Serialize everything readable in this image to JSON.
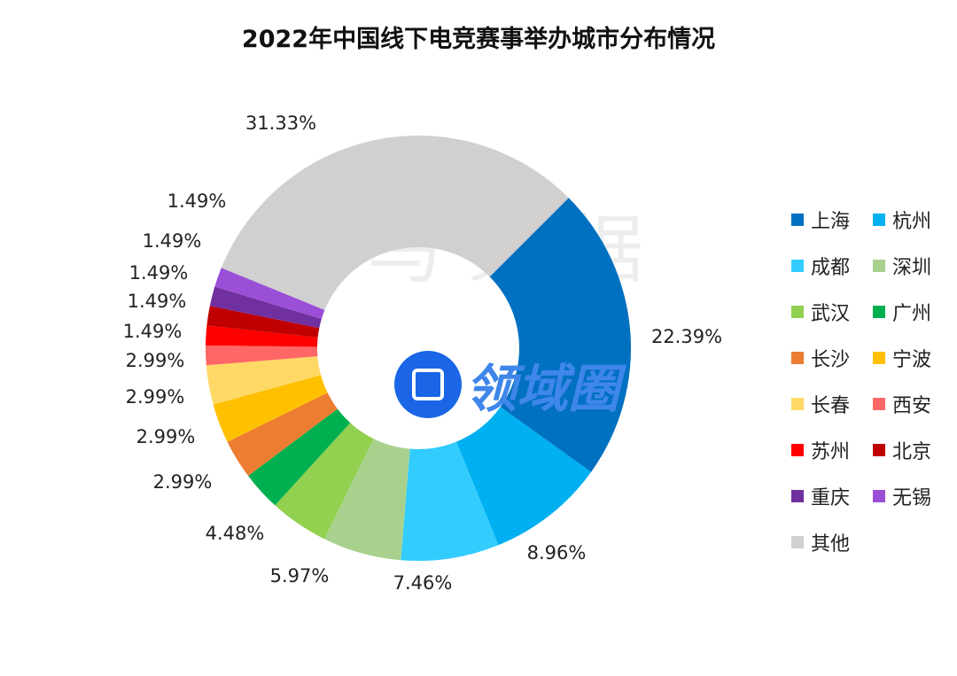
{
  "chart_data": {
    "type": "pie",
    "variant": "donut",
    "title": "2022年中国线下电竞赛事举办城市分布情况",
    "categories": [
      "上海",
      "杭州",
      "成都",
      "深圳",
      "武汉",
      "广州",
      "长沙",
      "宁波",
      "长春",
      "西安",
      "苏州",
      "北京",
      "重庆",
      "无锡",
      "其他"
    ],
    "values": [
      22.39,
      8.96,
      7.46,
      5.97,
      4.48,
      2.99,
      2.99,
      2.99,
      2.99,
      1.49,
      1.49,
      1.49,
      1.49,
      1.49,
      31.33
    ],
    "labels": [
      "22.39%",
      "8.96%",
      "7.46%",
      "5.97%",
      "4.48%",
      "2.99%",
      "2.99%",
      "2.99%",
      "2.99%",
      "1.49%",
      "1.49%",
      "1.49%",
      "1.49%",
      "1.49%",
      "31.33%"
    ],
    "colors": [
      "#0070c0",
      "#00b0f0",
      "#33ccff",
      "#a9d18e",
      "#92d050",
      "#00b050",
      "#ed7d31",
      "#ffc000",
      "#ffd966",
      "#ff6666",
      "#ff0000",
      "#c00000",
      "#7030a0",
      "#9b4fd6",
      "#d0d0d0"
    ],
    "legend_position": "right",
    "start_angle_deg": 45,
    "direction": "clockwise"
  },
  "watermark": {
    "text": "伽马数据",
    "logo_text": "领域圈"
  }
}
